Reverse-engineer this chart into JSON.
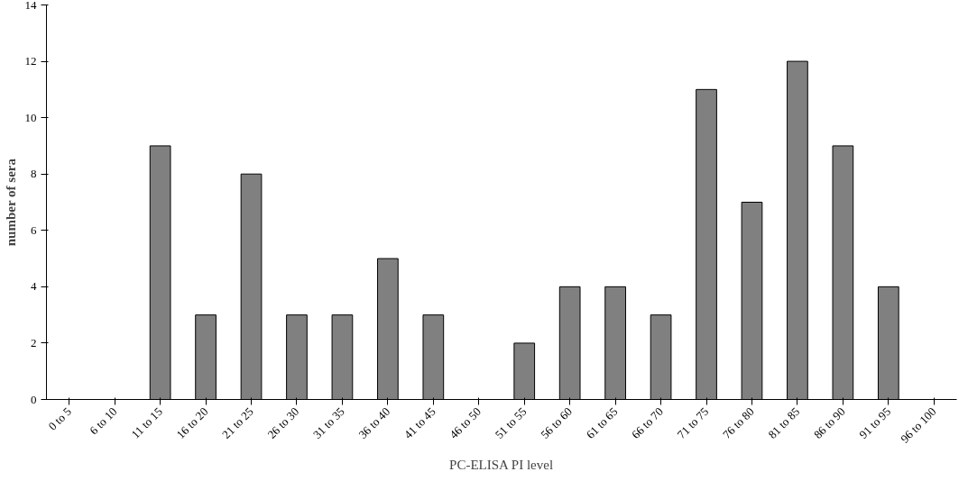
{
  "chart_data": {
    "type": "bar",
    "xlabel": "PC-ELISA PI level",
    "ylabel": "number of sera",
    "categories": [
      "0 to 5",
      "6 to 10",
      "11 to 15",
      "16 to 20",
      "21 to 25",
      "26 to 30",
      "31 to 35",
      "36 to 40",
      "41 to 45",
      "46 to 50",
      "51 to 55",
      "56 to 60",
      "61 to 65",
      "66 to 70",
      "71 to 75",
      "76 to 80",
      "81 to 85",
      "86 to 90",
      "91 to 95",
      "96 to 100"
    ],
    "values": [
      0,
      0,
      9,
      3,
      8,
      3,
      3,
      5,
      3,
      0,
      2,
      4,
      4,
      3,
      11,
      7,
      12,
      9,
      4,
      0
    ],
    "color": "#808080",
    "ylim": [
      0,
      14
    ],
    "yticks": [
      0,
      2,
      4,
      6,
      8,
      10,
      12,
      14
    ],
    "grid": false
  }
}
